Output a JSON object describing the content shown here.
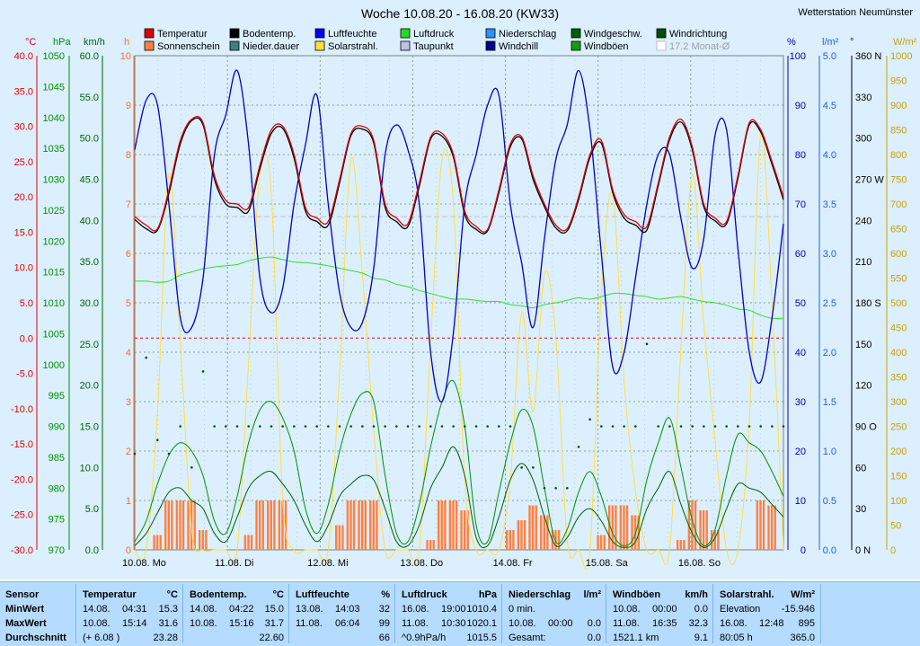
{
  "title": "Woche 10.08.20 - 16.08.20 (KW33)",
  "station": "Wetterstation Neumünster",
  "colors": {
    "bg": "#dcefff",
    "grid": "#6a8a6a",
    "temp": "#e00000",
    "ground": "#000000",
    "hum": "#0000c8",
    "press": "#33dd33",
    "wind": "#006000",
    "gust": "#009000",
    "sun": "#ff8040",
    "solar": "#ffe040",
    "dew": "#bbbbdd",
    "rain": "#2080ff",
    "chill": "#000080"
  },
  "legend": [
    {
      "label": "Temperatur",
      "color": "#e00000"
    },
    {
      "label": "Sonnenschein",
      "color": "#ff8040"
    },
    {
      "label": "Bodentemp.",
      "color": "#000000"
    },
    {
      "label": "Nieder.dauer",
      "color": "#408080"
    },
    {
      "label": "Luftfeuchte",
      "color": "#0000ff"
    },
    {
      "label": "Solarstrahl.",
      "color": "#ffe040"
    },
    {
      "label": "Luftdruck",
      "color": "#22dd22"
    },
    {
      "label": "Taupunkt",
      "color": "#c0c0e8"
    },
    {
      "label": "Niederschlag",
      "color": "#3090ff"
    },
    {
      "label": "Windchill",
      "color": "#000090"
    },
    {
      "label": "Windgeschw.",
      "color": "#006000"
    },
    {
      "label": "Windböen",
      "color": "#10a010"
    },
    {
      "label": "Windrichtung",
      "color": "#005000"
    },
    {
      "label": "17.2 Monat-Ø",
      "color": "#ffffff"
    }
  ],
  "chart_data": {
    "type": "line",
    "title": "Woche 10.08.20 - 16.08.20 (KW33)",
    "days": [
      "10.08.  Mo",
      "11.08.  Di",
      "12.08.  Mi",
      "13.08.  Do",
      "14.08.  Fr",
      "15.08.  Sa",
      "16.08.  So"
    ],
    "axes": {
      "temp": {
        "unit": "°C",
        "ticks": [
          "40.0",
          "35.0",
          "30.0",
          "25.0",
          "20.0",
          "15.0",
          "10.0",
          "5.0",
          "0.0",
          "-5.0",
          "-10.0",
          "-15.0",
          "-20.0",
          "-25.0",
          "-30.0"
        ],
        "ylim": [
          -30,
          40
        ]
      },
      "pressure": {
        "unit": "hPa",
        "ticks": [
          "1050",
          "1045",
          "1040",
          "1035",
          "1030",
          "1025",
          "1020",
          "1015",
          "1010",
          "1005",
          "1000",
          "995",
          "990",
          "985",
          "980",
          "975",
          "970"
        ],
        "ylim": [
          970,
          1050
        ]
      },
      "wind": {
        "unit": "km/h",
        "ticks": [
          "60.0",
          "55.0",
          "50.0",
          "45.0",
          "40.0",
          "35.0",
          "30.0",
          "25.0",
          "20.0",
          "15.0",
          "10.0",
          "5.0",
          "0.0"
        ],
        "ylim": [
          0,
          60
        ]
      },
      "sunhours": {
        "unit": "h",
        "ticks": [
          "10",
          "9",
          "8",
          "7",
          "6",
          "5",
          "4",
          "3",
          "2",
          "1",
          "0"
        ],
        "ylim": [
          0,
          10
        ]
      },
      "humidity": {
        "unit": "%",
        "ticks": [
          "100",
          "90",
          "80",
          "70",
          "60",
          "50",
          "40",
          "30",
          "20",
          "10",
          "0"
        ],
        "ylim": [
          0,
          100
        ]
      },
      "rain": {
        "unit": "l/m²",
        "ticks": [
          "5.0",
          "4.5",
          "4.0",
          "3.5",
          "3.0",
          "2.5",
          "2.0",
          "1.5",
          "1.0",
          "0.5",
          "0.0"
        ],
        "ylim": [
          0,
          5
        ]
      },
      "direction": {
        "unit": "°",
        "ticks": [
          "360 N",
          "330",
          "300",
          "270 W",
          "240",
          "210",
          "180 S",
          "150",
          "120",
          "90  O",
          "60",
          "30",
          "0   N"
        ],
        "ylim": [
          0,
          360
        ]
      },
      "solar": {
        "unit": "W/m²",
        "ticks": [
          "1000",
          "950",
          "900",
          "850",
          "800",
          "750",
          "700",
          "650",
          "600",
          "550",
          "500",
          "450",
          "400",
          "350",
          "300",
          "250",
          "200",
          "150",
          "100",
          "50",
          "0"
        ],
        "ylim": [
          0,
          1000
        ]
      }
    },
    "monthly_avg_temp": 17.2,
    "series": [
      {
        "name": "Temperatur",
        "axis": "temp",
        "values": [
          17.2,
          16.0,
          15.5,
          21.0,
          28.0,
          31.0,
          30.5,
          23.0,
          19.5,
          19.0,
          18.5,
          24.5,
          29.5,
          30.0,
          26.0,
          18.5,
          17.0,
          16.5,
          22.5,
          29.0,
          30.0,
          28.0,
          19.0,
          17.0,
          16.2,
          22.0,
          28.5,
          29.0,
          26.0,
          18.0,
          15.8,
          15.4,
          21.0,
          27.5,
          28.5,
          23.0,
          19.0,
          16.0,
          15.5,
          20.0,
          26.0,
          28.0,
          21.0,
          17.5,
          16.5,
          15.8,
          22.0,
          28.5,
          31.0,
          27.0,
          19.0,
          17.0,
          16.5,
          23.0,
          30.5,
          29.5,
          25.0,
          20.0
        ]
      },
      {
        "name": "Bodentemp.",
        "axis": "temp",
        "values": [
          16.8,
          15.5,
          15.3,
          20.5,
          27.5,
          30.8,
          30.2,
          22.5,
          19.0,
          18.5,
          18.0,
          24.0,
          29.0,
          29.7,
          25.5,
          18.0,
          16.5,
          16.0,
          22.0,
          28.7,
          29.6,
          27.6,
          18.5,
          16.5,
          15.8,
          21.5,
          28.2,
          28.6,
          25.6,
          17.5,
          15.4,
          15.2,
          20.6,
          27.1,
          28.2,
          22.5,
          18.6,
          15.6,
          15.2,
          19.6,
          25.6,
          27.6,
          20.6,
          17.0,
          16.0,
          15.3,
          21.6,
          28.1,
          30.6,
          26.6,
          18.6,
          16.6,
          16.2,
          22.6,
          30.2,
          29.2,
          24.6,
          19.6
        ]
      },
      {
        "name": "Luftfeuchte",
        "axis": "humidity",
        "values": [
          81,
          91,
          90,
          70,
          47,
          45,
          55,
          80,
          88,
          97,
          82,
          55,
          48,
          53,
          70,
          82,
          92,
          70,
          52,
          45,
          46,
          57,
          80,
          86,
          81,
          70,
          40,
          30,
          44,
          70,
          80,
          90,
          92,
          70,
          58,
          45,
          63,
          79,
          86,
          97,
          85,
          60,
          37,
          40,
          55,
          70,
          80,
          80,
          67,
          57,
          63,
          84,
          85,
          61,
          40,
          34,
          47,
          66
        ]
      },
      {
        "name": "Luftdruck",
        "axis": "pressure",
        "values": [
          1013.5,
          1013.5,
          1013.3,
          1013.5,
          1014.5,
          1015.0,
          1015.5,
          1015.8,
          1016.0,
          1016.2,
          1016.8,
          1017.2,
          1017.4,
          1017.0,
          1016.6,
          1016.5,
          1016.3,
          1016.0,
          1015.6,
          1015.2,
          1014.8,
          1014.0,
          1013.7,
          1013.0,
          1012.6,
          1012.0,
          1011.5,
          1011.0,
          1010.6,
          1010.6,
          1010.4,
          1010.2,
          1010.2,
          1009.7,
          1009.5,
          1009.2,
          1009.7,
          1010.0,
          1010.4,
          1010.8,
          1010.6,
          1011.0,
          1011.5,
          1011.5,
          1011.2,
          1011.0,
          1010.6,
          1010.8,
          1011.0,
          1010.6,
          1010.2,
          1010.0,
          1009.6,
          1009.0,
          1008.8,
          1008.0,
          1007.5,
          1007.5
        ]
      },
      {
        "name": "Windgeschw.",
        "axis": "wind",
        "values": [
          0.5,
          2.0,
          4.5,
          7.0,
          7.5,
          6.0,
          5.0,
          2.0,
          1.0,
          4.0,
          7.5,
          9.0,
          9.5,
          8.0,
          6.0,
          3.0,
          1.0,
          3.0,
          6.5,
          8.0,
          9.0,
          8.5,
          5.0,
          1.0,
          0.5,
          3.0,
          7.5,
          10.0,
          12.5,
          9.0,
          1.5,
          0.5,
          4.0,
          8.5,
          10.5,
          8.5,
          4.0,
          0.5,
          1.5,
          4.0,
          5.0,
          3.5,
          1.0,
          0.3,
          1.0,
          5.0,
          7.5,
          9.5,
          5.5,
          2.0,
          0.3,
          1.5,
          5.0,
          8.0,
          7.5,
          7.0,
          5.5,
          4.0
        ]
      },
      {
        "name": "Windböen",
        "axis": "wind",
        "values": [
          1.0,
          3.5,
          8.0,
          11.5,
          13.0,
          12.0,
          9.0,
          3.5,
          2.0,
          6.5,
          13.0,
          17.0,
          18.0,
          16.0,
          12.0,
          5.0,
          2.0,
          5.5,
          12.0,
          16.5,
          19.0,
          18.0,
          9.0,
          2.0,
          1.0,
          5.5,
          12.5,
          18.0,
          20.5,
          15.0,
          3.0,
          1.0,
          7.0,
          13.0,
          17.0,
          15.0,
          7.5,
          1.0,
          2.5,
          7.0,
          9.5,
          6.5,
          2.0,
          0.5,
          2.0,
          8.5,
          13.0,
          16.0,
          10.0,
          3.5,
          0.5,
          2.5,
          9.0,
          14.0,
          13.0,
          12.0,
          9.5,
          6.5
        ]
      },
      {
        "name": "Solarstrahl.",
        "axis": "solar",
        "values": [
          0,
          0,
          280,
          760,
          420,
          40,
          0,
          0,
          0,
          0,
          380,
          760,
          720,
          100,
          0,
          0,
          0,
          0,
          360,
          790,
          560,
          240,
          0,
          0,
          0,
          0,
          420,
          790,
          700,
          140,
          0,
          0,
          0,
          140,
          480,
          280,
          560,
          430,
          20,
          0,
          0,
          520,
          720,
          340,
          120,
          0,
          0,
          0,
          410,
          760,
          460,
          220,
          0,
          0,
          260,
          840,
          500,
          0
        ]
      },
      {
        "name": "Sonnenschein",
        "axis": "sunhours",
        "values": [
          0,
          0,
          0.3,
          1.0,
          1.0,
          1.0,
          0.4,
          0,
          0,
          0,
          0.3,
          1.0,
          1.0,
          1.0,
          0,
          0,
          0,
          0,
          0.5,
          1.0,
          1.0,
          1.0,
          0,
          0,
          0,
          0,
          0.2,
          1.0,
          1.0,
          0.8,
          0,
          0,
          0,
          0.4,
          0.6,
          0.9,
          0.7,
          0.4,
          0,
          0,
          0,
          0.3,
          0.9,
          0.9,
          0.7,
          0,
          0,
          0,
          0.2,
          1.0,
          0.8,
          0.4,
          0,
          0,
          0,
          1.0,
          0.9,
          0
        ]
      },
      {
        "name": "Windrichtung",
        "axis": "direction",
        "values": [
          70,
          140,
          80,
          70,
          90,
          60,
          130,
          90,
          90,
          90,
          90,
          90,
          90,
          90,
          90,
          90,
          90,
          90,
          90,
          90,
          90,
          90,
          90,
          90,
          90,
          90,
          90,
          90,
          90,
          90,
          90,
          90,
          90,
          90,
          60,
          60,
          45,
          45,
          45,
          75,
          95,
          90,
          90,
          90,
          90,
          150,
          90,
          90,
          90,
          90,
          90,
          90,
          90,
          90,
          90,
          90,
          90,
          90
        ]
      }
    ],
    "grid": true,
    "legend_position": "top"
  },
  "stats": {
    "row_labels": {
      "h": "Sensor",
      "min": "MinWert",
      "max": "MaxWert",
      "avg": "Durchschnitt"
    },
    "columns": [
      {
        "title": "Temperatur",
        "unit": "°C",
        "min": [
          "14.08.",
          "04:31",
          "15.3"
        ],
        "max": [
          "10.08.",
          "15:14",
          "31.6"
        ],
        "avg": [
          "(+ 6.08 )",
          "",
          "23.28"
        ]
      },
      {
        "title": "Bodentemp.",
        "unit": "°C",
        "min": [
          "14.08.",
          "04:22",
          "15.0"
        ],
        "max": [
          "10.08.",
          "15:16",
          "31.7"
        ],
        "avg": [
          "",
          "",
          "22.60"
        ]
      },
      {
        "title": "Luftfeuchte",
        "unit": "%",
        "min": [
          "13.08.",
          "14:03",
          "32"
        ],
        "max": [
          "11.08.",
          "06:04",
          "99"
        ],
        "avg": [
          "",
          "",
          "66"
        ]
      },
      {
        "title": "Luftdruck",
        "unit": "hPa",
        "min": [
          "16.08.",
          "19:00",
          "1010.4"
        ],
        "max": [
          "11.08.",
          "10:30",
          "1020.1"
        ],
        "avg": [
          "^0.9hPa/h",
          "",
          "1015.5"
        ]
      },
      {
        "title": "Niederschlag",
        "unit": "l/m²",
        "min": [
          "0 min.",
          "",
          ""
        ],
        "max": [
          "10.08.",
          "00:00",
          "0.0"
        ],
        "avg": [
          "Gesamt:",
          "",
          "0.0"
        ]
      },
      {
        "title": "Windböen",
        "unit": "km/h",
        "min": [
          "10.08.",
          "00:00",
          "0.0"
        ],
        "max": [
          "11.08.",
          "16:35",
          "32.3"
        ],
        "avg": [
          "1521.1 km",
          "",
          "9.1"
        ]
      },
      {
        "title": "Solarstrahl.",
        "unit": "W/m²",
        "min": [
          "Elevation",
          "",
          "-15.946"
        ],
        "max": [
          "16.08.",
          "12:48",
          "895"
        ],
        "avg": [
          "80:05 h",
          "",
          "365.0"
        ]
      }
    ]
  }
}
